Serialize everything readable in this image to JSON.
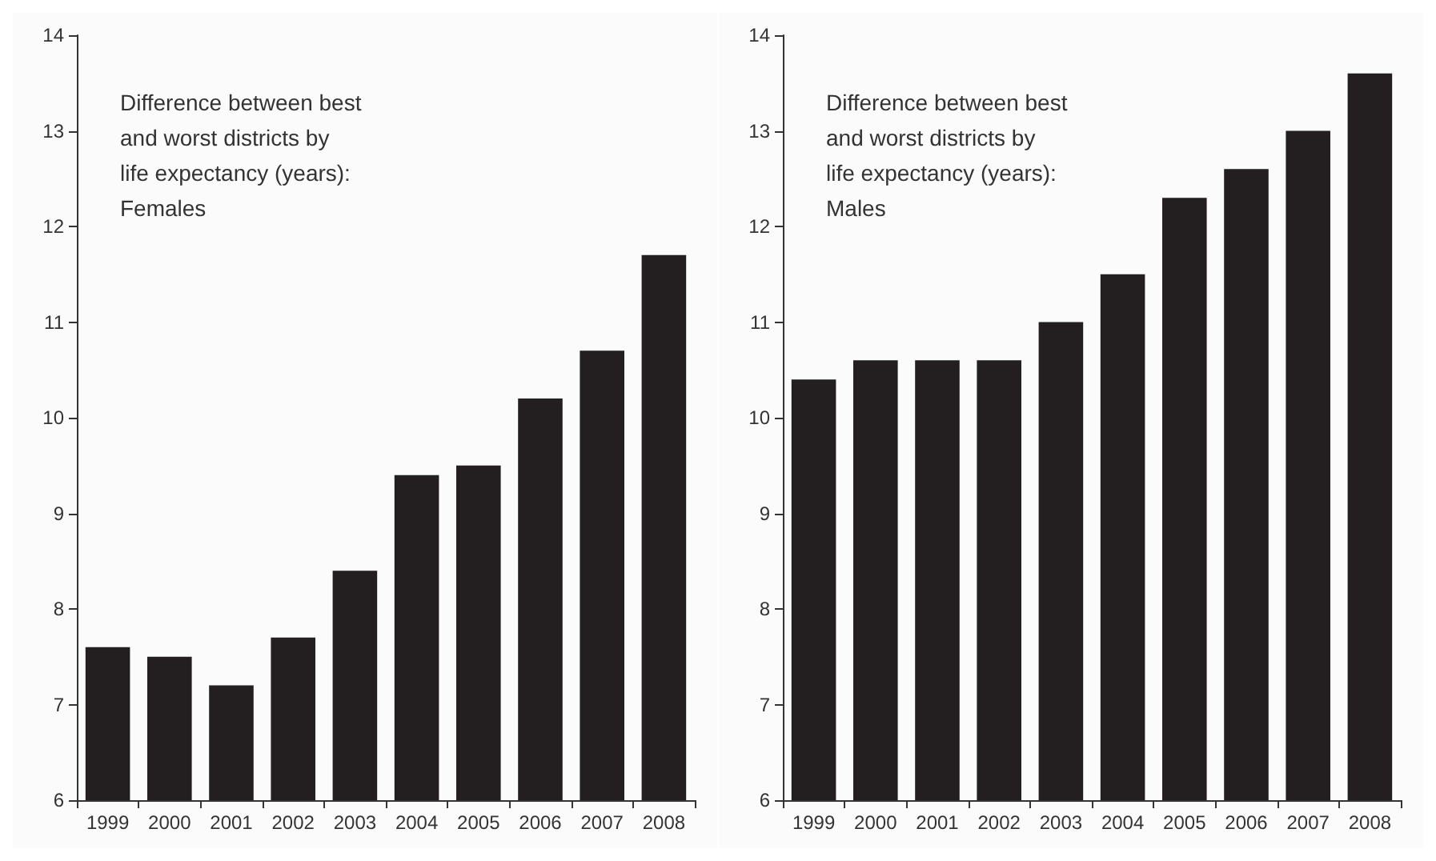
{
  "chart_data": [
    {
      "type": "bar",
      "title": "Difference between best\nand worst districts by\nlife expectancy (years):\nFemales",
      "categories": [
        "1999",
        "2000",
        "2001",
        "2002",
        "2003",
        "2004",
        "2005",
        "2006",
        "2007",
        "2008"
      ],
      "values": [
        7.6,
        7.5,
        7.2,
        7.7,
        8.4,
        9.4,
        9.5,
        10.2,
        10.7,
        11.7
      ],
      "color": "#231f20",
      "ylim": [
        6,
        14
      ],
      "yticks": [
        6,
        7,
        8,
        9,
        10,
        11,
        12,
        13,
        14
      ],
      "grid": false
    },
    {
      "type": "bar",
      "title": "Difference between best\nand worst districts by\nlife expectancy (years):\nMales",
      "categories": [
        "1999",
        "2000",
        "2001",
        "2002",
        "2003",
        "2004",
        "2005",
        "2006",
        "2007",
        "2008"
      ],
      "values": [
        10.4,
        10.6,
        10.6,
        10.6,
        11.0,
        11.5,
        12.3,
        12.6,
        13.0,
        13.6
      ],
      "color": "#231f20",
      "ylim": [
        6,
        14
      ],
      "yticks": [
        6,
        7,
        8,
        9,
        10,
        11,
        12,
        13,
        14
      ],
      "grid": false
    }
  ]
}
